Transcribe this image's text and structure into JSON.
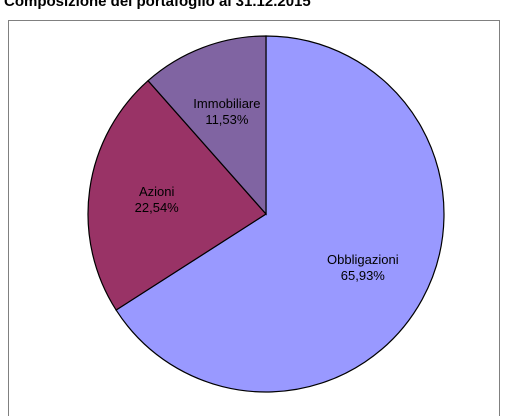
{
  "chart_data": {
    "type": "pie",
    "title": "Composizione del portafoglio al 31.12.2015",
    "categories": [
      "Obbligazioni",
      "Azioni",
      "Immobiliare"
    ],
    "values": [
      65.93,
      22.54,
      11.53
    ],
    "value_labels": [
      "65,93%",
      "22,54%",
      "11,53%"
    ],
    "colors": [
      "#9999ff",
      "#993366",
      "#8064a2"
    ]
  }
}
